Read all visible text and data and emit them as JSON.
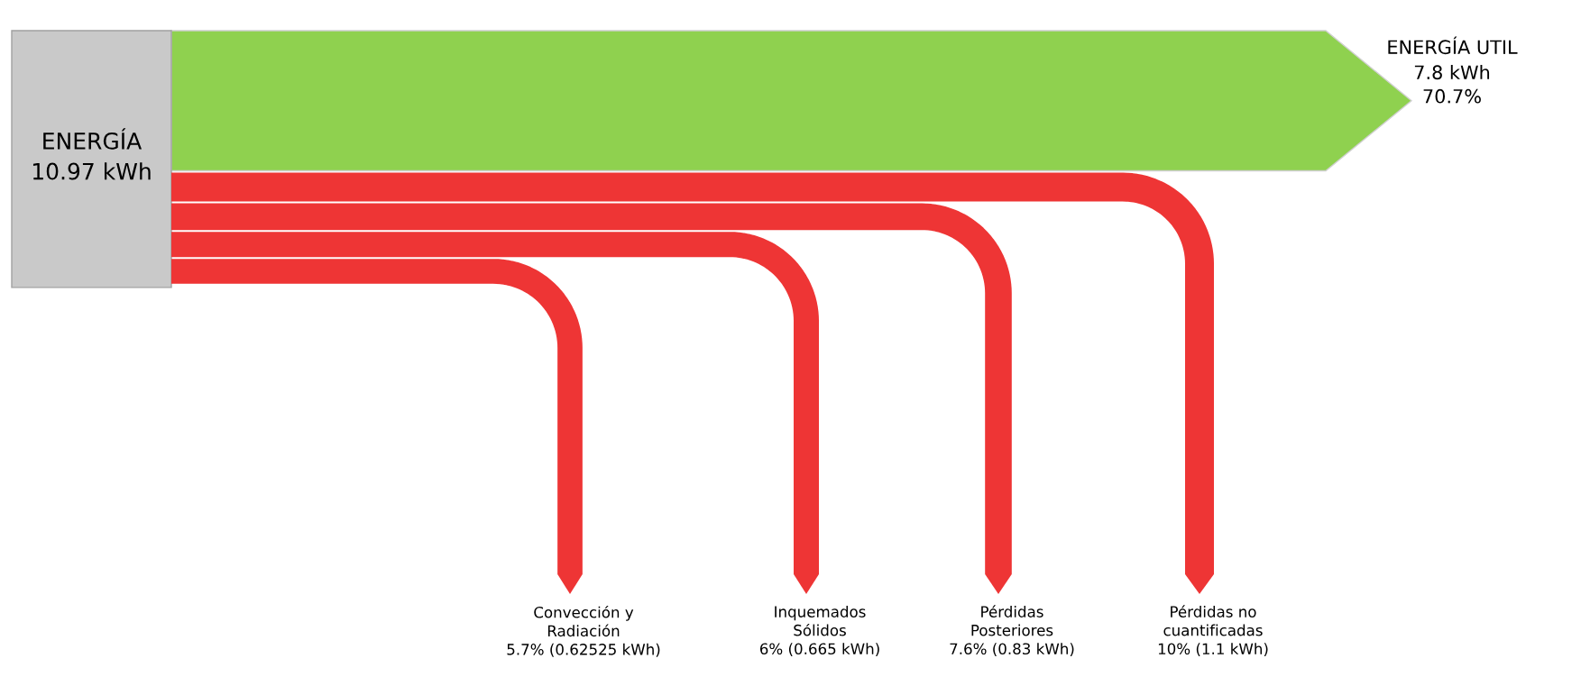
{
  "chart_data": {
    "type": "other",
    "annotations": [
      "ENERGÍA\n10.97 kWh"
    ],
    "categories": [
      "ENERGÍA UTIL",
      "Convección y\nRadiación",
      "Inquemados\nSólidos",
      "Pérdidas\nPosteriores",
      "Pérdidas no\ncuantificadas"
    ],
    "values": [
      70.7,
      5.7,
      6,
      7.6,
      10
    ],
    "value_labels": [
      "7.8 kWh\n70.7%",
      "5.7% (0.62525 kWh)",
      "6% (0.665 kWh)",
      "7.6% (0.83 kWh)",
      "10% (1.1 kWh)"
    ],
    "colors": [
      "#8fd14f",
      "#ee3535",
      "#ee3535",
      "#ee3535",
      "#ee3535"
    ]
  }
}
